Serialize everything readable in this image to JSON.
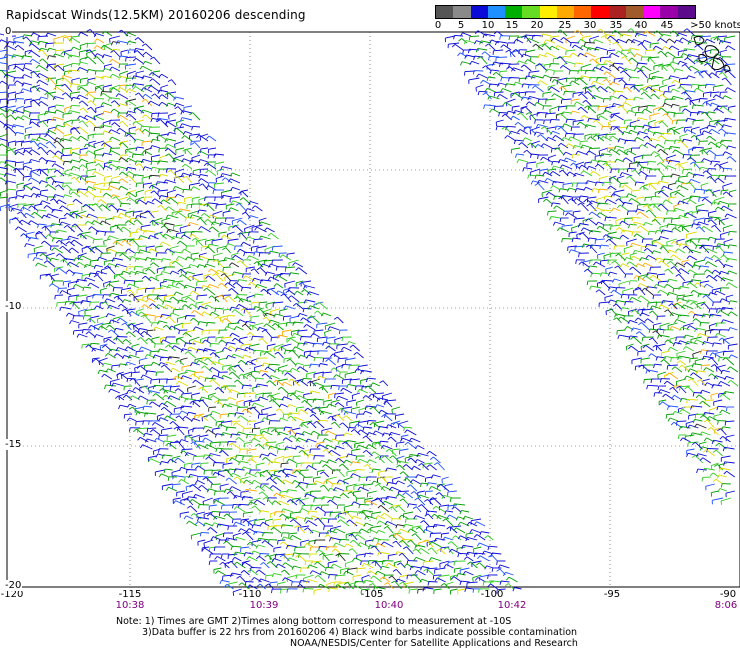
{
  "title": "Rapidscat Winds(12.5KM) 20160206 descending",
  "legend": {
    "colors": [
      "#555555",
      "#8a8a8a",
      "#0b0bd8",
      "#1e90ff",
      "#00b000",
      "#66dd22",
      "#ffee00",
      "#ffaa00",
      "#ff6600",
      "#ff0000",
      "#aa2222",
      "#a05a2c",
      "#ff00ff",
      "#9900aa",
      "#5a0a8a"
    ],
    "labels": [
      "0",
      "5",
      "10",
      "15",
      "20",
      "25",
      "30",
      "35",
      "40",
      "45",
      ">50 knots"
    ]
  },
  "map": {
    "lon_labels": [
      "-120",
      "-115",
      "-110",
      "-105",
      "-100",
      "-95",
      "-90"
    ],
    "lat_labels": [
      "0",
      "-10",
      "-15",
      "-20"
    ],
    "time_labels": [
      "10:38",
      "10:39",
      "10:40",
      "10:42",
      "8:06"
    ]
  },
  "notes": [
    "Note: 1) Times are GMT 2)Times along bottom correspond to measurement at -10S",
    "3)Data buffer is 22 hrs from 20160206 4) Black wind barbs indicate possible contamination",
    "NOAA/NESDIS/Center for Satellite Applications and Research"
  ]
}
